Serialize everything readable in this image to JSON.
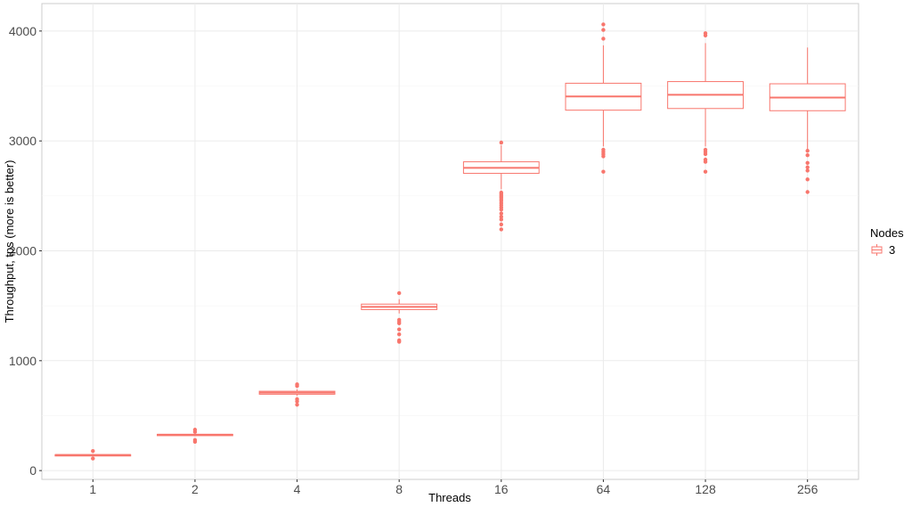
{
  "chart_data": {
    "type": "boxplot",
    "xlabel": "Threads",
    "ylabel": "Throughput, tps (more is better)",
    "categories": [
      "1",
      "2",
      "4",
      "8",
      "16",
      "64",
      "128",
      "256"
    ],
    "yticks": [
      0,
      1000,
      2000,
      3000,
      4000
    ],
    "ylim": [
      -80,
      4250
    ],
    "grid": true,
    "legend": {
      "title": "Nodes",
      "position": "right"
    },
    "series": [
      {
        "name": "3",
        "color": "#F8766D",
        "boxes": [
          {
            "category": "1",
            "lower": 138,
            "q1": 140,
            "median": 142,
            "q3": 145,
            "upper": 148,
            "outliers": [
              110,
              178
            ]
          },
          {
            "category": "2",
            "lower": 318,
            "q1": 322,
            "median": 326,
            "q3": 330,
            "upper": 336,
            "outliers": [
              262,
              278,
              352,
              372
            ]
          },
          {
            "category": "4",
            "lower": 680,
            "q1": 695,
            "median": 710,
            "q3": 722,
            "upper": 740,
            "outliers": [
              600,
              630,
              650,
              770,
              785
            ]
          },
          {
            "category": "8",
            "lower": 1430,
            "q1": 1465,
            "median": 1490,
            "q3": 1515,
            "upper": 1560,
            "outliers": [
              1172,
              1185,
              1240,
              1285,
              1340,
              1355,
              1372,
              1615
            ]
          },
          {
            "category": "16",
            "lower": 2560,
            "q1": 2705,
            "median": 2755,
            "q3": 2810,
            "upper": 2960,
            "outliers": [
              2195,
              2240,
              2285,
              2310,
              2340,
              2375,
              2395,
              2415,
              2435,
              2455,
              2470,
              2485,
              2500,
              2515,
              2530,
              2985
            ]
          },
          {
            "category": "64",
            "lower": 2950,
            "q1": 3280,
            "median": 3405,
            "q3": 3525,
            "upper": 3870,
            "outliers": [
              2720,
              2860,
              2880,
              2900,
              2920,
              3930,
              4010,
              4060
            ]
          },
          {
            "category": "128",
            "lower": 2950,
            "q1": 3295,
            "median": 3420,
            "q3": 3540,
            "upper": 3890,
            "outliers": [
              2720,
              2810,
              2830,
              2880,
              2900,
              2920,
              3960,
              3980
            ]
          },
          {
            "category": "256",
            "lower": 2920,
            "q1": 3275,
            "median": 3395,
            "q3": 3520,
            "upper": 3850,
            "outliers": [
              2535,
              2650,
              2730,
              2760,
              2800,
              2870,
              2910
            ]
          }
        ]
      }
    ]
  }
}
